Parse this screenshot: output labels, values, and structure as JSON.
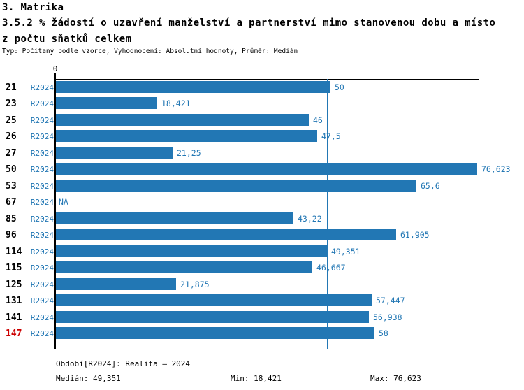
{
  "header": {
    "section_title": "3. Matrika",
    "title_line1": "3.5.2 % žádostí o uzavření manželství a partnerství mimo stanovenou dobu a místo",
    "title_line2": "z počtu sňatků celkem",
    "subtitle": "Typ: Počítaný podle vzorce, Vyhodnocení: Absolutní hodnoty, Průměr: Medián"
  },
  "chart_data": {
    "type": "bar",
    "orientation": "horizontal",
    "axis_zero_label": "0",
    "xlim": [
      0,
      76.623
    ],
    "median_value": 49.351,
    "bar_color": "#2277b4",
    "median_line_color": "#2277b4",
    "value_label_color": "#2277b4",
    "period_label_color": "#2277b4",
    "highlight_color": "#cc0000",
    "categories": [
      "21",
      "23",
      "25",
      "26",
      "27",
      "50",
      "53",
      "67",
      "85",
      "96",
      "114",
      "115",
      "125",
      "131",
      "141",
      "147"
    ],
    "rows": [
      {
        "id": "21",
        "period": "R2024",
        "value": 50,
        "label": "50",
        "highlight": false
      },
      {
        "id": "23",
        "period": "R2024",
        "value": 18.421,
        "label": "18,421",
        "highlight": false
      },
      {
        "id": "25",
        "period": "R2024",
        "value": 46,
        "label": "46",
        "highlight": false
      },
      {
        "id": "26",
        "period": "R2024",
        "value": 47.5,
        "label": "47,5",
        "highlight": false
      },
      {
        "id": "27",
        "period": "R2024",
        "value": 21.25,
        "label": "21,25",
        "highlight": false
      },
      {
        "id": "50",
        "period": "R2024",
        "value": 76.623,
        "label": "76,623",
        "highlight": false
      },
      {
        "id": "53",
        "period": "R2024",
        "value": 65.6,
        "label": "65,6",
        "highlight": false
      },
      {
        "id": "67",
        "period": "R2024",
        "value": null,
        "label": "NA",
        "highlight": false
      },
      {
        "id": "85",
        "period": "R2024",
        "value": 43.22,
        "label": "43,22",
        "highlight": false
      },
      {
        "id": "96",
        "period": "R2024",
        "value": 61.905,
        "label": "61,905",
        "highlight": false
      },
      {
        "id": "114",
        "period": "R2024",
        "value": 49.351,
        "label": "49,351",
        "highlight": false
      },
      {
        "id": "115",
        "period": "R2024",
        "value": 46.667,
        "label": "46,667",
        "highlight": false
      },
      {
        "id": "125",
        "period": "R2024",
        "value": 21.875,
        "label": "21,875",
        "highlight": false
      },
      {
        "id": "131",
        "period": "R2024",
        "value": 57.447,
        "label": "57,447",
        "highlight": false
      },
      {
        "id": "141",
        "period": "R2024",
        "value": 56.938,
        "label": "56,938",
        "highlight": false
      },
      {
        "id": "147",
        "period": "R2024",
        "value": 58,
        "label": "58",
        "highlight": true
      }
    ]
  },
  "footer": {
    "period_label": "Období[R2024]: Realita – 2024",
    "median_label": "Medián: 49,351",
    "min_label": "Min: 18,421",
    "max_label": "Max: 76,623"
  }
}
